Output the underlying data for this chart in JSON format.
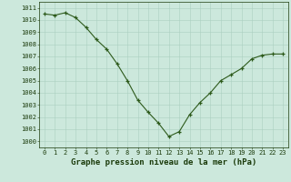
{
  "x": [
    0,
    1,
    2,
    3,
    4,
    5,
    6,
    7,
    8,
    9,
    10,
    11,
    12,
    13,
    14,
    15,
    16,
    17,
    18,
    19,
    20,
    21,
    22,
    23
  ],
  "y": [
    1010.5,
    1010.4,
    1010.6,
    1010.2,
    1009.4,
    1008.4,
    1007.6,
    1006.4,
    1005.0,
    1003.4,
    1002.4,
    1001.5,
    1000.4,
    1000.8,
    1002.2,
    1003.2,
    1004.0,
    1005.0,
    1005.5,
    1006.0,
    1006.8,
    1007.1,
    1007.2,
    1007.2
  ],
  "line_color": "#2d5a1b",
  "marker": "+",
  "marker_size": 3.5,
  "linewidth": 0.8,
  "bg_color": "#cce8dc",
  "grid_color": "#aacfc0",
  "xlabel": "Graphe pression niveau de la mer (hPa)",
  "xlabel_fontsize": 6.5,
  "xlabel_color": "#1a3a0a",
  "ylim": [
    999.5,
    1011.5
  ],
  "xlim": [
    -0.5,
    23.5
  ],
  "yticks": [
    1000,
    1001,
    1002,
    1003,
    1004,
    1005,
    1006,
    1007,
    1008,
    1009,
    1010,
    1011
  ],
  "xticks": [
    0,
    1,
    2,
    3,
    4,
    5,
    6,
    7,
    8,
    9,
    10,
    11,
    12,
    13,
    14,
    15,
    16,
    17,
    18,
    19,
    20,
    21,
    22,
    23
  ],
  "tick_fontsize": 5.0,
  "tick_color": "#1a3a0a"
}
